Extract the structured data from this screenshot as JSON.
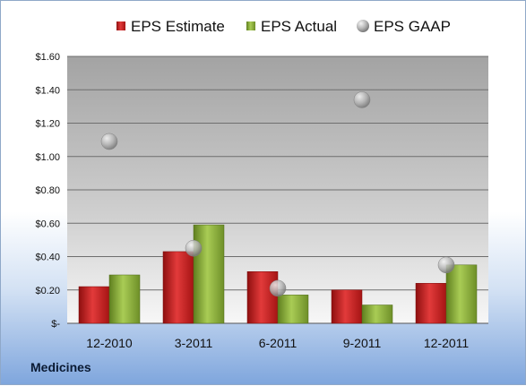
{
  "company_label": "Medicines",
  "colors": {
    "estimate": "#cc1f1f",
    "actual": "#8db33a",
    "gaap": "#b8b8b8"
  },
  "chart_data": {
    "type": "bar",
    "categories": [
      "12-2010",
      "3-2011",
      "6-2011",
      "9-2011",
      "12-2011"
    ],
    "series": [
      {
        "name": "EPS Estimate",
        "kind": "bar",
        "values": [
          0.22,
          0.43,
          0.31,
          0.2,
          0.24
        ]
      },
      {
        "name": "EPS Actual",
        "kind": "bar",
        "values": [
          0.29,
          0.59,
          0.17,
          0.11,
          0.35
        ]
      },
      {
        "name": "EPS GAAP",
        "kind": "scatter",
        "values": [
          1.09,
          0.45,
          0.21,
          1.34,
          0.35
        ]
      }
    ],
    "y_ticks": [
      "$-",
      "$0.20",
      "$0.40",
      "$0.60",
      "$0.80",
      "$1.00",
      "$1.20",
      "$1.40",
      "$1.60"
    ],
    "ylim": [
      0,
      1.6
    ],
    "grid": true,
    "legend_position": "top"
  }
}
